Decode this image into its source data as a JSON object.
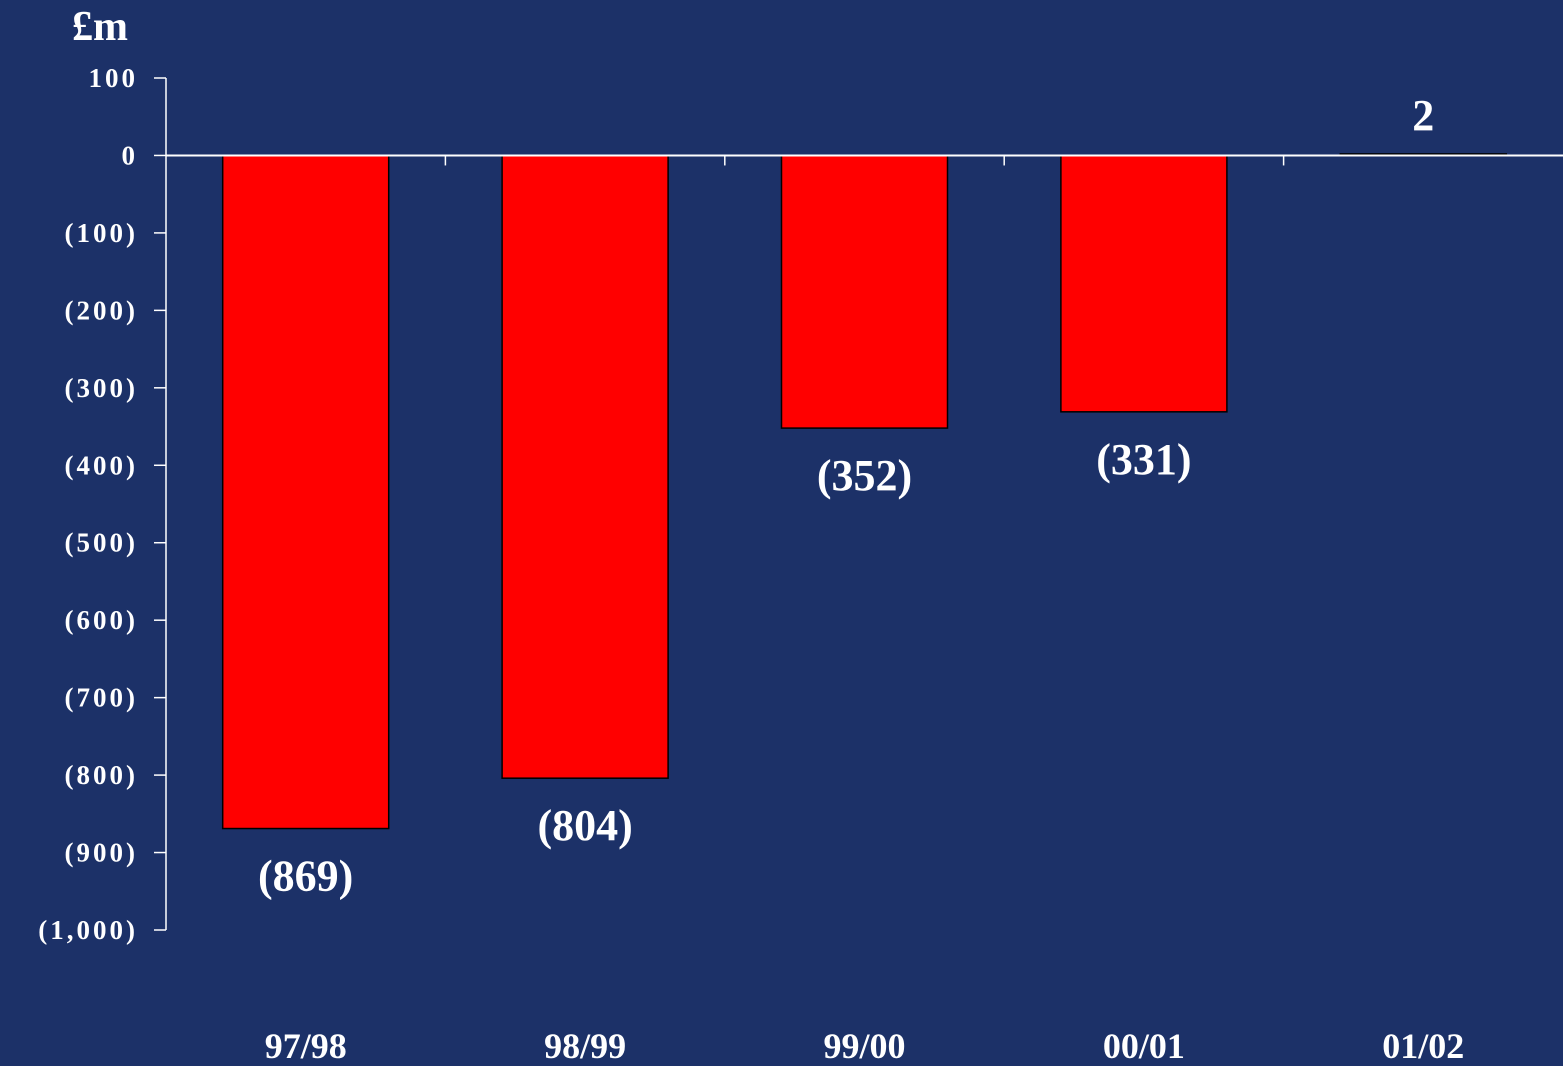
{
  "chart_data": {
    "type": "bar",
    "unit_label": "£m",
    "categories": [
      "97/98",
      "98/99",
      "99/00",
      "00/01",
      "01/02"
    ],
    "values": [
      -869,
      -804,
      -352,
      -331,
      2
    ],
    "data_labels": [
      "(869)",
      "(804)",
      "(352)",
      "(331)",
      "2"
    ],
    "ylim": [
      -1000,
      100
    ],
    "y_ticks": [
      100,
      0,
      -100,
      -200,
      -300,
      -400,
      -500,
      -600,
      -700,
      -800,
      -900,
      -1000
    ],
    "y_tick_labels": [
      "100",
      "0",
      "(100)",
      "(200)",
      "(300)",
      "(400)",
      "(500)",
      "(600)",
      "(700)",
      "(800)",
      "(900)",
      "(1,000)"
    ],
    "grid": false,
    "legend": "none",
    "colors": {
      "background": "#1c3168",
      "negative": "#ff0000",
      "positive": "#22e022",
      "axis": "#ffffff",
      "text": "#ffffff"
    }
  }
}
